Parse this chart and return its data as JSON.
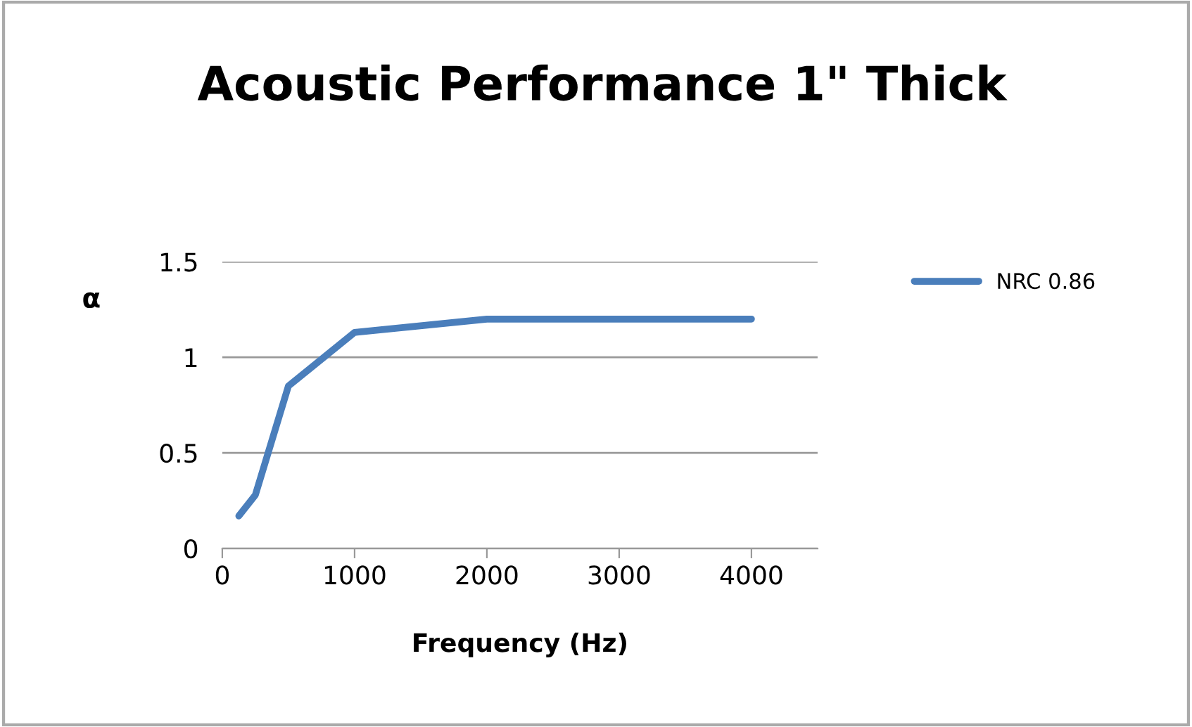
{
  "chart_data": {
    "type": "line",
    "title": "Acoustic Performance 1\" Thick",
    "xlabel": "Frequency (Hz)",
    "ylabel": "α",
    "x": [
      125,
      250,
      500,
      1000,
      2000,
      4000
    ],
    "series": [
      {
        "name": "NRC 0.86",
        "color": "#4a7ebb",
        "values": [
          0.17,
          0.28,
          0.85,
          1.13,
          1.2,
          1.2
        ]
      }
    ],
    "xlim": [
      0,
      4500
    ],
    "xticks": [
      0,
      1000,
      2000,
      3000,
      4000
    ],
    "ylim": [
      0,
      1.5
    ],
    "yticks": [
      0,
      0.5,
      1,
      1.5
    ],
    "grid": "y",
    "legend": "top right",
    "marker": "none",
    "line_style": "solid"
  }
}
